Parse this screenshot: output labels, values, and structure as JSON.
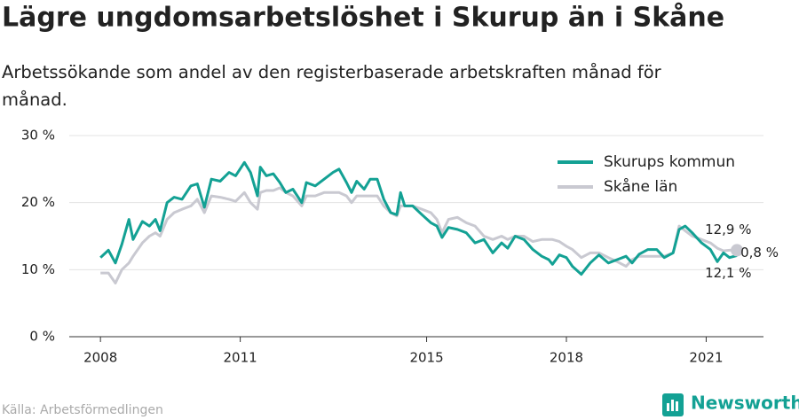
{
  "chart_data": {
    "type": "line",
    "title": "Lägre ungdomsarbetslöshet i Skurup än i Skåne",
    "subtitle": "Arbetssökande som andel av den registerbaserade arbetskraften månad för månad.",
    "source": "Källa: Arbetsförmedlingen",
    "brand": "Newsworthy",
    "x": [
      2008.0,
      2008.17,
      2008.32,
      2008.46,
      2008.61,
      2008.7,
      2008.9,
      2009.05,
      2009.18,
      2009.28,
      2009.43,
      2009.58,
      2009.75,
      2009.94,
      2010.08,
      2010.23,
      2010.38,
      2010.57,
      2010.76,
      2010.9,
      2011.09,
      2011.22,
      2011.37,
      2011.43,
      2011.56,
      2011.71,
      2011.85,
      2011.98,
      2012.13,
      2012.32,
      2012.42,
      2012.61,
      2012.8,
      2012.99,
      2013.12,
      2013.28,
      2013.39,
      2013.5,
      2013.66,
      2013.79,
      2013.94,
      2014.08,
      2014.23,
      2014.36,
      2014.44,
      2014.53,
      2014.7,
      2014.9,
      2015.09,
      2015.22,
      2015.33,
      2015.47,
      2015.66,
      2015.85,
      2016.04,
      2016.23,
      2016.42,
      2016.61,
      2016.74,
      2016.9,
      2017.09,
      2017.28,
      2017.47,
      2017.62,
      2017.7,
      2017.85,
      2018.0,
      2018.13,
      2018.32,
      2018.51,
      2018.7,
      2018.9,
      2019.09,
      2019.28,
      2019.41,
      2019.56,
      2019.75,
      2019.94,
      2020.1,
      2020.29,
      2020.42,
      2020.55,
      2020.7,
      2020.9,
      2021.09,
      2021.24,
      2021.37,
      2021.5,
      2021.66
    ],
    "series": [
      {
        "name": "Skurups kommun",
        "color": "#13a194",
        "values": [
          11.8,
          12.9,
          11.0,
          13.8,
          17.5,
          14.5,
          17.2,
          16.5,
          17.5,
          15.8,
          20.0,
          20.8,
          20.5,
          22.5,
          22.8,
          19.3,
          23.5,
          23.2,
          24.5,
          24.0,
          26.0,
          24.5,
          21.0,
          25.3,
          24.0,
          24.3,
          23.0,
          21.5,
          22.0,
          20.0,
          23.0,
          22.5,
          23.5,
          24.5,
          25.0,
          23.0,
          21.5,
          23.2,
          22.0,
          23.5,
          23.5,
          20.5,
          18.5,
          18.2,
          21.5,
          19.5,
          19.5,
          18.2,
          17.0,
          16.5,
          14.8,
          16.3,
          16.0,
          15.5,
          14.0,
          14.5,
          12.5,
          14.0,
          13.2,
          15.0,
          14.5,
          13.0,
          12.0,
          11.5,
          10.8,
          12.2,
          11.8,
          10.5,
          9.3,
          11.0,
          12.2,
          11.0,
          11.5,
          12.0,
          11.0,
          12.3,
          13.0,
          13.0,
          11.8,
          12.5,
          16.0,
          16.5,
          15.5,
          14.0,
          13.0,
          11.2,
          12.5,
          11.8,
          12.1
        ]
      },
      {
        "name": "Skåne län",
        "color": "#c9c9d1",
        "values": [
          9.5,
          9.5,
          8.0,
          10.0,
          11.0,
          12.0,
          14.0,
          15.0,
          15.5,
          15.0,
          17.5,
          18.5,
          19.0,
          19.5,
          20.5,
          18.5,
          21.0,
          20.8,
          20.5,
          20.2,
          21.5,
          20.0,
          19.0,
          21.5,
          21.8,
          21.8,
          22.2,
          21.5,
          21.0,
          19.5,
          21.0,
          21.0,
          21.5,
          21.5,
          21.5,
          21.0,
          20.0,
          21.0,
          21.0,
          21.0,
          21.0,
          19.5,
          18.5,
          18.0,
          19.5,
          19.5,
          19.5,
          19.0,
          18.5,
          17.5,
          15.5,
          17.5,
          17.8,
          17.0,
          16.5,
          15.0,
          14.5,
          15.0,
          14.5,
          15.0,
          15.0,
          14.2,
          14.5,
          14.5,
          14.5,
          14.2,
          13.5,
          13.0,
          11.8,
          12.5,
          12.5,
          11.8,
          11.2,
          10.5,
          11.5,
          12.0,
          12.0,
          12.0,
          12.0,
          12.5,
          16.5,
          15.8,
          15.0,
          14.5,
          14.0,
          13.2,
          12.8,
          12.9,
          12.9
        ]
      }
    ],
    "annotations": [
      "12,9 %",
      "0,8 %",
      "12,1 %"
    ],
    "xlim": [
      2007.33,
      2022.23
    ],
    "xticks": [
      2008,
      2011,
      2015,
      2018,
      2021
    ],
    "ylim": [
      0,
      30
    ],
    "yticks": [
      {
        "value": 0,
        "label": "0 %"
      },
      {
        "value": 10,
        "label": "10 %"
      },
      {
        "value": 20,
        "label": "20 %"
      },
      {
        "value": 30,
        "label": "30 %"
      }
    ],
    "grid": true
  }
}
